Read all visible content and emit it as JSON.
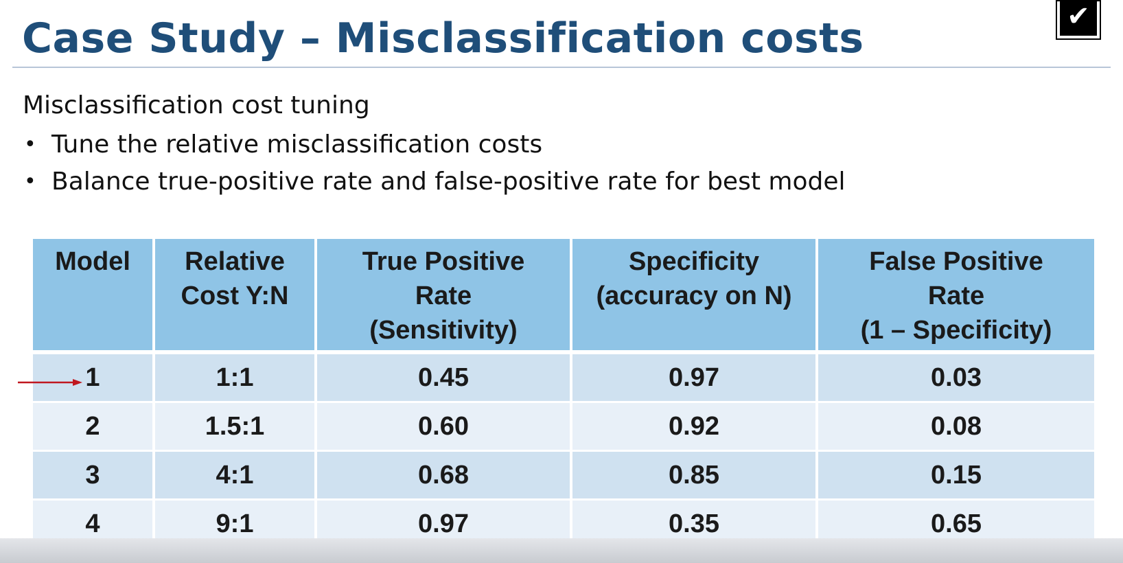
{
  "slide": {
    "title": "Case Study – Misclassification costs",
    "subtitle": "Misclassification cost tuning",
    "bullets": [
      "Tune the relative misclassification costs",
      "Balance true-positive rate and false-positive rate for best model"
    ],
    "check_glyph": "✔",
    "bullet_glyph": "•"
  },
  "table": {
    "headers": [
      [
        "Model"
      ],
      [
        "Relative",
        "Cost Y:N"
      ],
      [
        "True Positive",
        "Rate",
        "(Sensitivity)"
      ],
      [
        "Specificity",
        "(accuracy on N)"
      ],
      [
        "False Positive",
        "Rate",
        "(1 – Specificity)"
      ]
    ],
    "rows": [
      [
        "1",
        "1:1",
        "0.45",
        "0.97",
        "0.03"
      ],
      [
        "2",
        "1.5:1",
        "0.60",
        "0.92",
        "0.08"
      ],
      [
        "3",
        "4:1",
        "0.68",
        "0.85",
        "0.15"
      ],
      [
        "4",
        "9:1",
        "0.97",
        "0.35",
        "0.65"
      ]
    ],
    "highlighted_row": 1
  },
  "colors": {
    "title": "#1f4e79",
    "header_bg": "#8fc4e6",
    "row_dark": "#cfe1f0",
    "row_light": "#e8f0f8",
    "arrow": "#c0171f"
  },
  "icons": {
    "top_right": "checkbox-checked-icon",
    "row_pointer": "arrow-right-icon"
  }
}
